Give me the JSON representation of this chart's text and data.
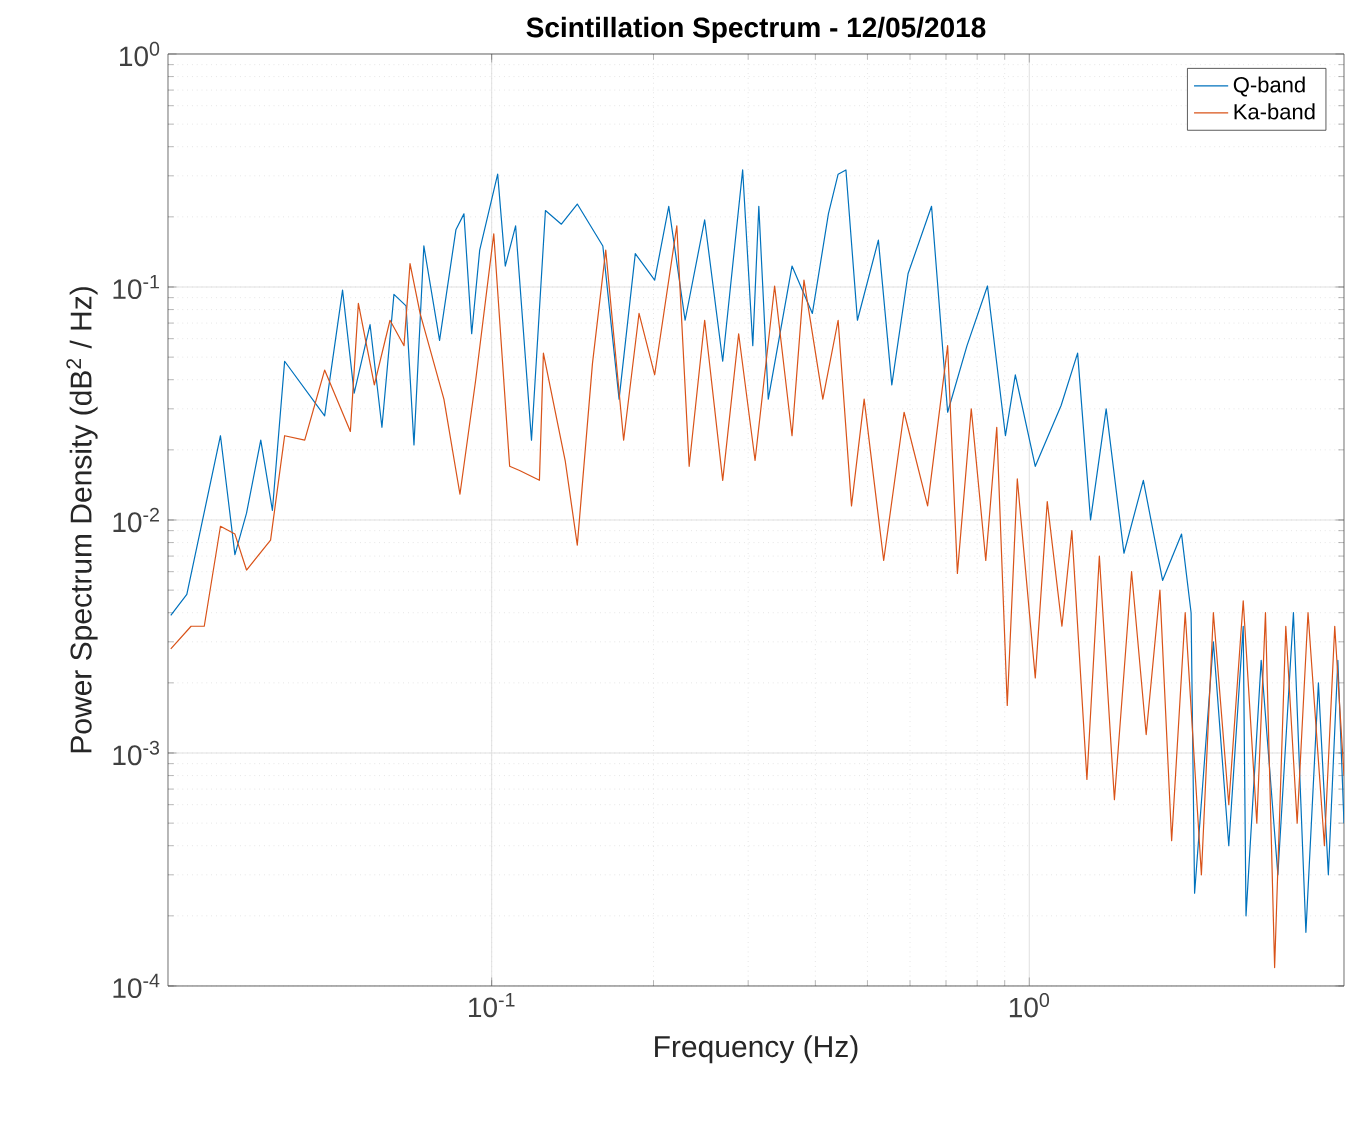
{
  "chart_data": {
    "type": "line",
    "title": "Scintillation Spectrum - 12/05/2018",
    "xlabel": "Frequency (Hz)",
    "ylabel": "Power Spectrum Density (dB$^{2}$ / Hz)",
    "log": "xy",
    "grid": true,
    "legend": "top right",
    "line_style": "solid",
    "marker": "none",
    "xlim": [
      0.025,
      3.85
    ],
    "ylim": [
      0.0001,
      1
    ],
    "xticks": [
      {
        "value": 0.1,
        "label": "10$^{-1}$"
      },
      {
        "value": 1,
        "label": "10$^{0}$"
      }
    ],
    "yticks": [
      {
        "value": 0.0001,
        "label": "10$^{-4}$"
      },
      {
        "value": 0.001,
        "label": "10$^{-3}$"
      },
      {
        "value": 0.01,
        "label": "10$^{-2}$"
      },
      {
        "value": 0.1,
        "label": "10$^{-1}$"
      },
      {
        "value": 1,
        "label": "10$^{0}$"
      }
    ],
    "series": [
      {
        "name": "Q-band",
        "color": "#0072bd",
        "x": [
          0.0253,
          0.0271,
          0.0313,
          0.0333,
          0.035,
          0.0372,
          0.0391,
          0.0412,
          0.0489,
          0.0528,
          0.0555,
          0.0594,
          0.0625,
          0.0658,
          0.0693,
          0.0717,
          0.0748,
          0.08,
          0.0858,
          0.0888,
          0.0918,
          0.095,
          0.1026,
          0.106,
          0.1108,
          0.1186,
          0.1259,
          0.1348,
          0.1443,
          0.161,
          0.1726,
          0.185,
          0.201,
          0.2135,
          0.229,
          0.249,
          0.269,
          0.293,
          0.306,
          0.314,
          0.327,
          0.362,
          0.395,
          0.423,
          0.441,
          0.456,
          0.479,
          0.524,
          0.555,
          0.595,
          0.658,
          0.705,
          0.766,
          0.836,
          0.903,
          0.942,
          1.026,
          1.146,
          1.23,
          1.3,
          1.39,
          1.5,
          1.63,
          1.77,
          1.92,
          2.0,
          2.03,
          2.2,
          2.35,
          2.5,
          2.53,
          2.7,
          2.9,
          3.1,
          3.27,
          3.45,
          3.6,
          3.75,
          3.85
        ],
        "values": [
          0.0039,
          0.0048,
          0.023,
          0.0071,
          0.0107,
          0.022,
          0.011,
          0.048,
          0.028,
          0.097,
          0.035,
          0.069,
          0.025,
          0.093,
          0.083,
          0.021,
          0.15,
          0.059,
          0.176,
          0.206,
          0.063,
          0.144,
          0.305,
          0.123,
          0.183,
          0.022,
          0.213,
          0.186,
          0.227,
          0.15,
          0.033,
          0.139,
          0.107,
          0.222,
          0.072,
          0.194,
          0.048,
          0.318,
          0.056,
          0.222,
          0.033,
          0.123,
          0.077,
          0.206,
          0.305,
          0.318,
          0.072,
          0.159,
          0.038,
          0.114,
          0.222,
          0.029,
          0.056,
          0.101,
          0.023,
          0.042,
          0.017,
          0.031,
          0.052,
          0.01,
          0.03,
          0.0072,
          0.0148,
          0.0055,
          0.0087,
          0.004,
          0.00025,
          0.003,
          0.0004,
          0.0035,
          0.0002,
          0.0025,
          0.0003,
          0.004,
          0.00017,
          0.002,
          0.0003,
          0.0025,
          0.0005
        ]
      },
      {
        "name": "Ka-band",
        "color": "#d95319",
        "x": [
          0.0253,
          0.0276,
          0.0292,
          0.0313,
          0.0333,
          0.035,
          0.0388,
          0.0412,
          0.0449,
          0.0489,
          0.0546,
          0.0565,
          0.0605,
          0.0647,
          0.0687,
          0.0705,
          0.0736,
          0.0815,
          0.0873,
          0.0934,
          0.1009,
          0.108,
          0.1127,
          0.1227,
          0.1248,
          0.137,
          0.1443,
          0.154,
          0.163,
          0.176,
          0.188,
          0.201,
          0.221,
          0.233,
          0.249,
          0.269,
          0.288,
          0.309,
          0.336,
          0.362,
          0.381,
          0.413,
          0.441,
          0.467,
          0.493,
          0.536,
          0.585,
          0.647,
          0.705,
          0.735,
          0.78,
          0.83,
          0.87,
          0.91,
          0.95,
          1.026,
          1.08,
          1.15,
          1.2,
          1.28,
          1.35,
          1.44,
          1.55,
          1.65,
          1.75,
          1.84,
          1.95,
          2.09,
          2.2,
          2.35,
          2.5,
          2.65,
          2.75,
          2.86,
          3.0,
          3.15,
          3.3,
          3.54,
          3.7,
          3.85
        ],
        "values": [
          0.0028,
          0.0035,
          0.0035,
          0.0094,
          0.0087,
          0.0061,
          0.0082,
          0.023,
          0.022,
          0.044,
          0.024,
          0.085,
          0.038,
          0.072,
          0.056,
          0.126,
          0.077,
          0.033,
          0.0129,
          0.04,
          0.169,
          0.017,
          0.0163,
          0.0148,
          0.052,
          0.018,
          0.0078,
          0.047,
          0.144,
          0.022,
          0.077,
          0.042,
          0.183,
          0.017,
          0.072,
          0.0148,
          0.063,
          0.018,
          0.101,
          0.023,
          0.107,
          0.033,
          0.072,
          0.0115,
          0.033,
          0.0067,
          0.029,
          0.0115,
          0.056,
          0.0059,
          0.03,
          0.0067,
          0.025,
          0.0016,
          0.015,
          0.0021,
          0.012,
          0.0035,
          0.009,
          0.00077,
          0.007,
          0.00063,
          0.006,
          0.0012,
          0.005,
          0.00042,
          0.004,
          0.0003,
          0.004,
          0.0006,
          0.0045,
          0.0005,
          0.004,
          0.00012,
          0.0035,
          0.0005,
          0.004,
          0.0004,
          0.0035,
          0.0008
        ]
      }
    ]
  }
}
